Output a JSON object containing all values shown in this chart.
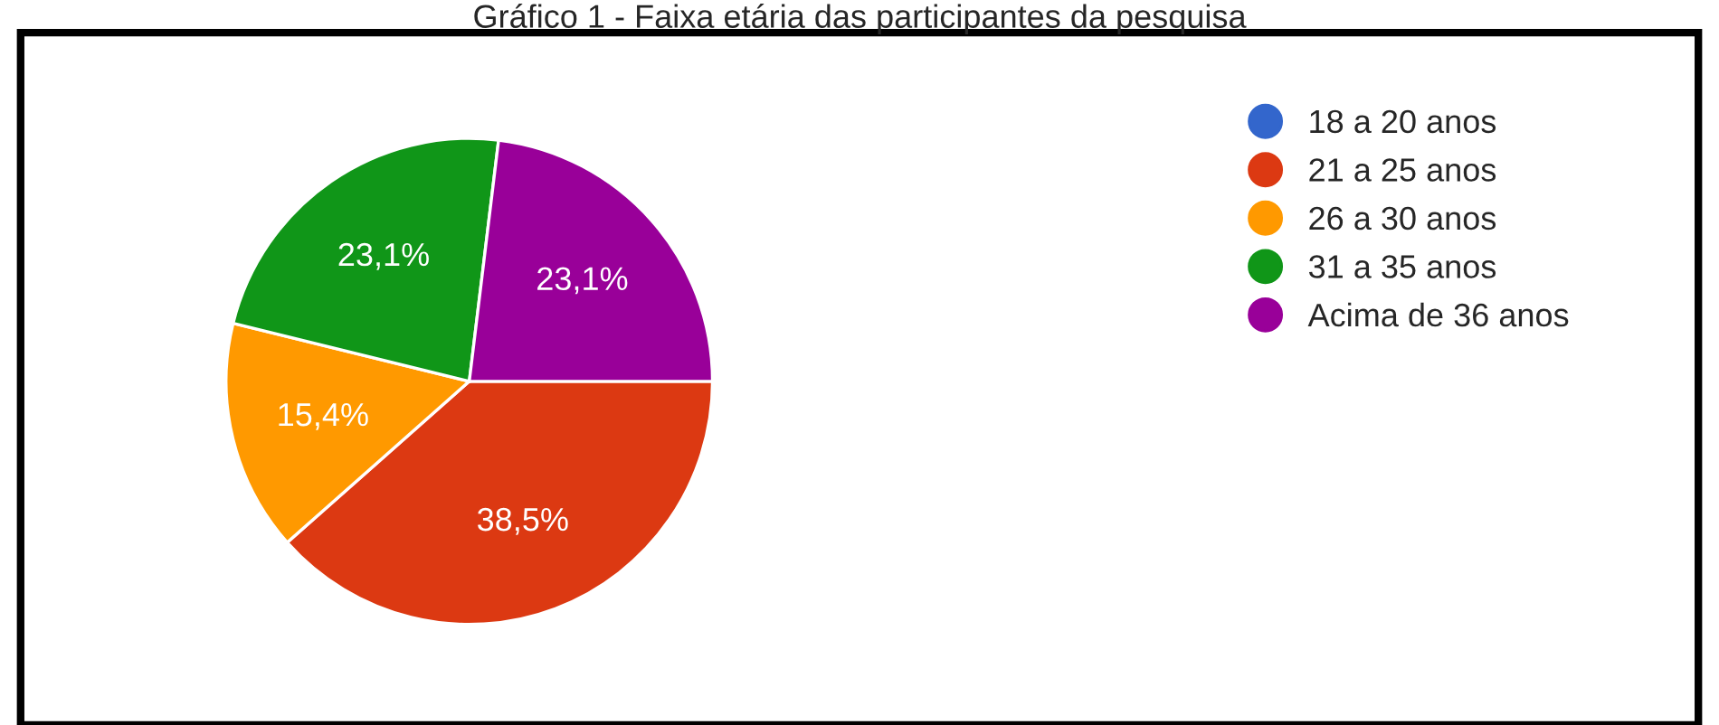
{
  "chart_data": {
    "type": "pie",
    "title": "Gráfico 1 - Faixa etária das participantes da pesquisa",
    "categories": [
      "18 a 20 anos",
      "21 a 25 anos",
      "26 a 30 anos",
      "31 a 35 anos",
      "Acima de 36 anos"
    ],
    "values": [
      0,
      38.5,
      15.4,
      23.1,
      23.1
    ],
    "colors": [
      "#3366cc",
      "#dc3912",
      "#ff9900",
      "#109618",
      "#990099"
    ],
    "value_labels": [
      null,
      "38,5%",
      "15,4%",
      "23,1%",
      "23,1%"
    ],
    "legend": "right"
  }
}
